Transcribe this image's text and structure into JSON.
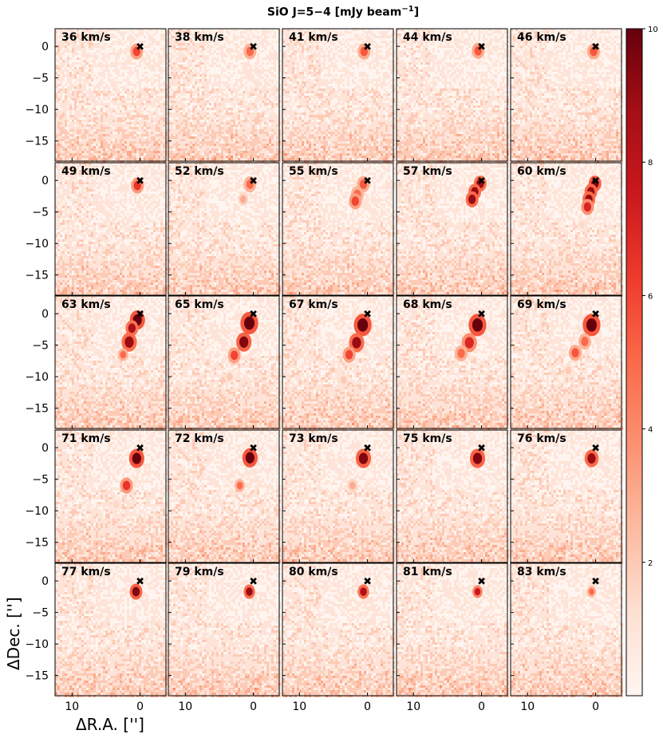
{
  "chart_data": {
    "type": "heatmap",
    "title_main": "SiO J=5−4 [mJy beam",
    "title_sup": "−1",
    "title_end": "]",
    "xlabel": "ΔR.A. ['']",
    "ylabel": "ΔDec. ['']",
    "xlim": [
      12.5,
      -3.8
    ],
    "ylim": [
      -18.2,
      2.8
    ],
    "x_ticks": [
      10,
      0
    ],
    "y_ticks": [
      0,
      -5,
      -10,
      -15
    ],
    "colorbar": {
      "colormap": "Reds",
      "range": [
        0,
        10
      ],
      "ticks": [
        2,
        4,
        6,
        8,
        10
      ]
    },
    "grid": false,
    "marker": {
      "symbol": "✖",
      "x": 0,
      "y": 0
    },
    "panels": [
      {
        "label": "36 km/s",
        "emission": [
          {
            "x": 0.5,
            "y": -0.8,
            "amp": 0.6,
            "r": 0.5
          }
        ]
      },
      {
        "label": "38 km/s",
        "emission": [
          {
            "x": 0.5,
            "y": -0.8,
            "amp": 0.5,
            "r": 0.5
          }
        ]
      },
      {
        "label": "41 km/s",
        "emission": [
          {
            "x": 0.5,
            "y": -0.8,
            "amp": 0.55,
            "r": 0.5
          }
        ]
      },
      {
        "label": "44 km/s",
        "emission": [
          {
            "x": 0.5,
            "y": -0.7,
            "amp": 0.55,
            "r": 0.5
          }
        ]
      },
      {
        "label": "46 km/s",
        "emission": [
          {
            "x": 0.3,
            "y": -0.8,
            "amp": 0.55,
            "r": 0.5
          }
        ]
      },
      {
        "label": "49 km/s",
        "emission": [
          {
            "x": 0.4,
            "y": -0.8,
            "amp": 0.65,
            "r": 0.5
          }
        ]
      },
      {
        "label": "52 km/s",
        "emission": [
          {
            "x": 0.5,
            "y": -0.6,
            "amp": 0.5,
            "r": 0.5
          },
          {
            "x": 1.5,
            "y": -3.0,
            "amp": 0.3,
            "r": 0.4
          }
        ]
      },
      {
        "label": "55 km/s",
        "emission": [
          {
            "x": 0.6,
            "y": -0.6,
            "amp": 0.55,
            "r": 0.5
          },
          {
            "x": 1.5,
            "y": -2.2,
            "amp": 0.5,
            "r": 0.5
          },
          {
            "x": 1.8,
            "y": -3.3,
            "amp": 0.6,
            "r": 0.5
          }
        ]
      },
      {
        "label": "57 km/s",
        "emission": [
          {
            "x": 0.2,
            "y": -0.5,
            "amp": 0.9,
            "r": 0.5
          },
          {
            "x": 1.0,
            "y": -1.8,
            "amp": 0.9,
            "r": 0.5
          },
          {
            "x": 1.4,
            "y": -3.0,
            "amp": 0.9,
            "r": 0.5
          },
          {
            "x": 1.0,
            "y": -7.5,
            "amp": 0.15,
            "r": 0.4
          }
        ]
      },
      {
        "label": "60 km/s",
        "emission": [
          {
            "x": 0.1,
            "y": -0.5,
            "amp": 0.95,
            "r": 0.5
          },
          {
            "x": 0.7,
            "y": -1.8,
            "amp": 0.9,
            "r": 0.5
          },
          {
            "x": 1.0,
            "y": -3.0,
            "amp": 0.9,
            "r": 0.5
          },
          {
            "x": 1.2,
            "y": -4.2,
            "amp": 0.7,
            "r": 0.5
          },
          {
            "x": 2.0,
            "y": -7.0,
            "amp": 0.15,
            "r": 0.4
          }
        ]
      },
      {
        "label": "63 km/s",
        "emission": [
          {
            "x": 0.4,
            "y": -1.0,
            "amp": 1.0,
            "r": 0.6
          },
          {
            "x": 1.2,
            "y": -2.3,
            "amp": 0.85,
            "r": 0.5
          },
          {
            "x": 1.6,
            "y": -4.5,
            "amp": 0.9,
            "r": 0.6
          },
          {
            "x": 2.5,
            "y": -6.5,
            "amp": 0.5,
            "r": 0.4
          }
        ]
      },
      {
        "label": "65 km/s",
        "emission": [
          {
            "x": 0.6,
            "y": -1.5,
            "amp": 1.0,
            "r": 0.7
          },
          {
            "x": 1.4,
            "y": -4.5,
            "amp": 0.95,
            "r": 0.6
          },
          {
            "x": 2.8,
            "y": -6.6,
            "amp": 0.6,
            "r": 0.5
          },
          {
            "x": 3.5,
            "y": -10.0,
            "amp": 0.2,
            "r": 0.4
          }
        ]
      },
      {
        "label": "67 km/s",
        "emission": [
          {
            "x": 0.7,
            "y": -1.8,
            "amp": 1.0,
            "r": 0.7
          },
          {
            "x": 1.6,
            "y": -4.6,
            "amp": 0.9,
            "r": 0.6
          },
          {
            "x": 2.7,
            "y": -6.5,
            "amp": 0.6,
            "r": 0.5
          },
          {
            "x": 3.5,
            "y": -10.5,
            "amp": 0.2,
            "r": 0.4
          }
        ]
      },
      {
        "label": "68 km/s",
        "emission": [
          {
            "x": 0.6,
            "y": -1.8,
            "amp": 1.0,
            "r": 0.7
          },
          {
            "x": 1.8,
            "y": -4.6,
            "amp": 0.7,
            "r": 0.6
          },
          {
            "x": 3.0,
            "y": -6.3,
            "amp": 0.5,
            "r": 0.5
          }
        ]
      },
      {
        "label": "69 km/s",
        "emission": [
          {
            "x": 0.6,
            "y": -1.8,
            "amp": 1.0,
            "r": 0.7
          },
          {
            "x": 1.6,
            "y": -4.4,
            "amp": 0.5,
            "r": 0.5
          },
          {
            "x": 3.0,
            "y": -6.2,
            "amp": 0.55,
            "r": 0.5
          },
          {
            "x": 4.0,
            "y": -9.0,
            "amp": 0.2,
            "r": 0.4
          }
        ]
      },
      {
        "label": "71 km/s",
        "emission": [
          {
            "x": 0.5,
            "y": -1.7,
            "amp": 1.0,
            "r": 0.6
          },
          {
            "x": 2.0,
            "y": -6.0,
            "amp": 0.65,
            "r": 0.5
          },
          {
            "x": 3.5,
            "y": -9.0,
            "amp": 0.15,
            "r": 0.4
          }
        ]
      },
      {
        "label": "72 km/s",
        "emission": [
          {
            "x": 0.5,
            "y": -1.6,
            "amp": 1.0,
            "r": 0.6
          },
          {
            "x": 2.0,
            "y": -6.0,
            "amp": 0.5,
            "r": 0.4
          }
        ]
      },
      {
        "label": "73 km/s",
        "emission": [
          {
            "x": 0.6,
            "y": -1.7,
            "amp": 0.95,
            "r": 0.6
          },
          {
            "x": 2.2,
            "y": -6.0,
            "amp": 0.3,
            "r": 0.4
          }
        ]
      },
      {
        "label": "75 km/s",
        "emission": [
          {
            "x": 0.6,
            "y": -1.7,
            "amp": 0.95,
            "r": 0.6
          }
        ]
      },
      {
        "label": "76 km/s",
        "emission": [
          {
            "x": 0.6,
            "y": -1.7,
            "amp": 0.9,
            "r": 0.55
          }
        ]
      },
      {
        "label": "77 km/s",
        "emission": [
          {
            "x": 0.6,
            "y": -1.7,
            "amp": 0.95,
            "r": 0.5
          }
        ]
      },
      {
        "label": "79 km/s",
        "emission": [
          {
            "x": 0.6,
            "y": -1.7,
            "amp": 0.9,
            "r": 0.45
          }
        ]
      },
      {
        "label": "80 km/s",
        "emission": [
          {
            "x": 0.6,
            "y": -1.7,
            "amp": 0.85,
            "r": 0.45
          }
        ]
      },
      {
        "label": "81 km/s",
        "emission": [
          {
            "x": 0.6,
            "y": -1.7,
            "amp": 0.75,
            "r": 0.4
          }
        ]
      },
      {
        "label": "83 km/s",
        "emission": [
          {
            "x": 0.6,
            "y": -1.7,
            "amp": 0.5,
            "r": 0.35
          }
        ]
      }
    ]
  }
}
